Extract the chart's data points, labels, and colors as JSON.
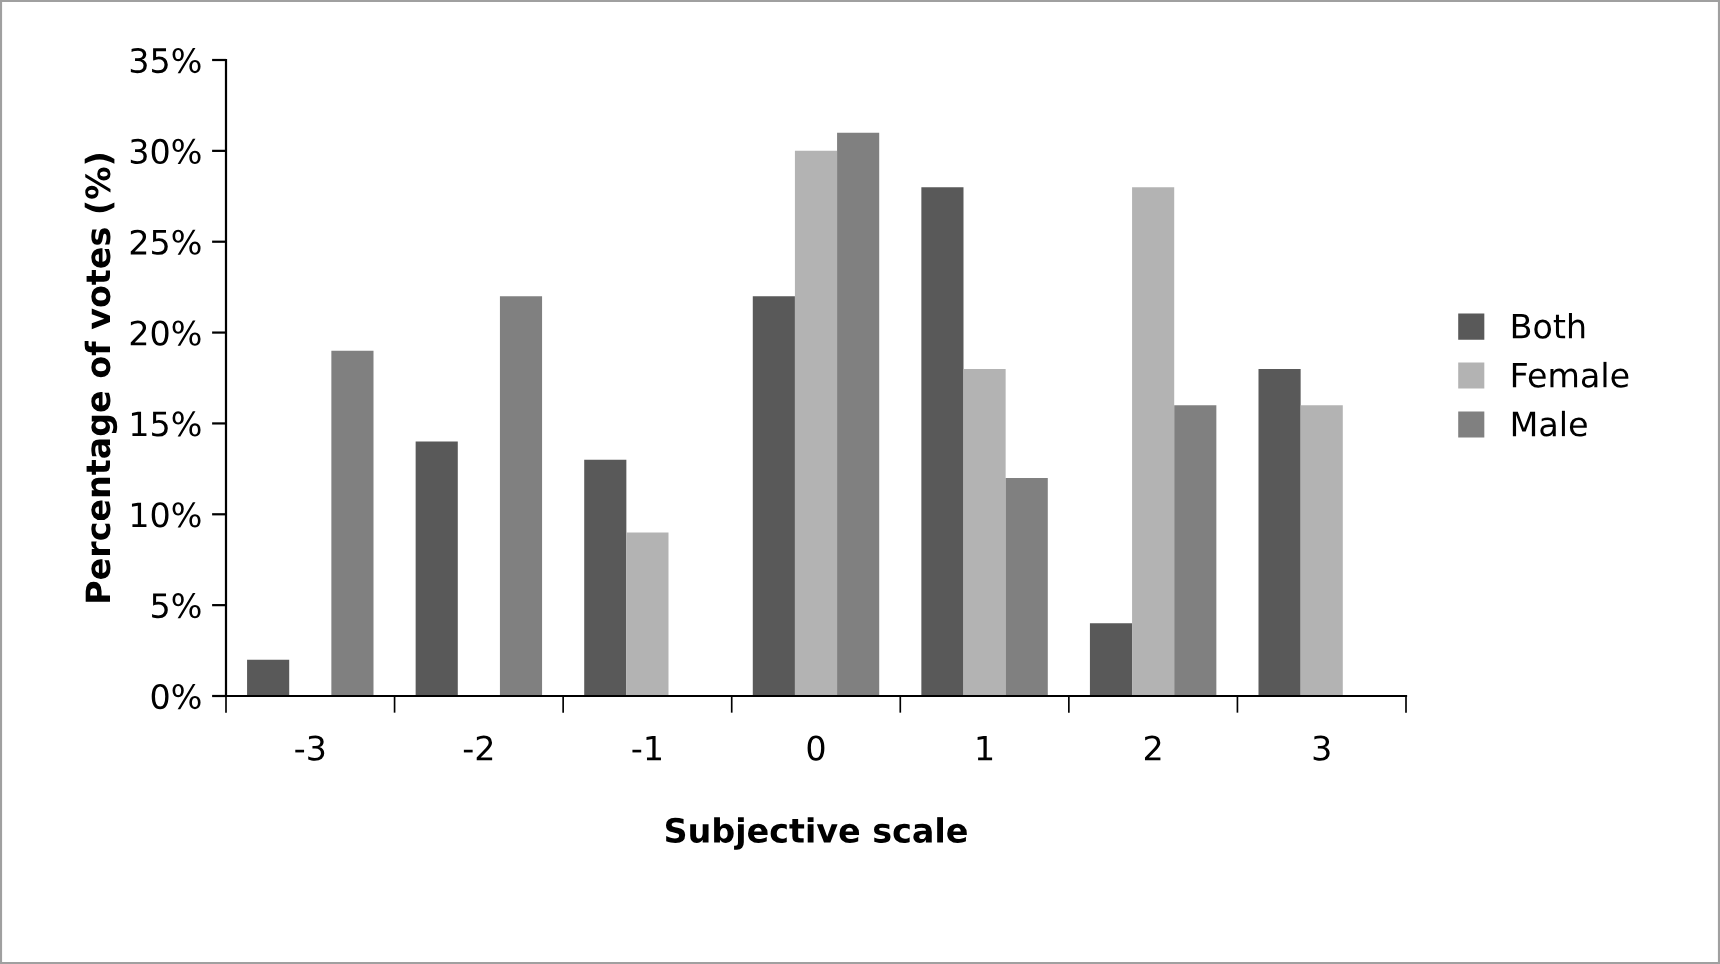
{
  "chart_data": {
    "type": "bar",
    "xlabel": "Subjective scale",
    "ylabel": "Percentage of votes (%)",
    "categories": [
      "-3",
      "-2",
      "-1",
      "0",
      "1",
      "2",
      "3"
    ],
    "series": [
      {
        "name": "Both",
        "color": "#595959",
        "values": [
          2,
          14,
          13,
          22,
          28,
          4,
          18
        ]
      },
      {
        "name": "Female",
        "color": "#b3b3b3",
        "values": [
          0,
          0,
          9,
          30,
          18,
          28,
          16
        ]
      },
      {
        "name": "Male",
        "color": "#808080",
        "values": [
          19,
          22,
          0,
          31,
          12,
          16,
          0
        ]
      }
    ],
    "ylim": [
      0,
      35
    ],
    "yticks": [
      {
        "value": 0,
        "label": "0%"
      },
      {
        "value": 5,
        "label": "5%"
      },
      {
        "value": 10,
        "label": "10%"
      },
      {
        "value": 15,
        "label": "15%"
      },
      {
        "value": 20,
        "label": "20%"
      },
      {
        "value": 25,
        "label": "25%"
      },
      {
        "value": 30,
        "label": "30%"
      },
      {
        "value": 35,
        "label": "35%"
      }
    ],
    "grid": false,
    "legend": "right"
  }
}
